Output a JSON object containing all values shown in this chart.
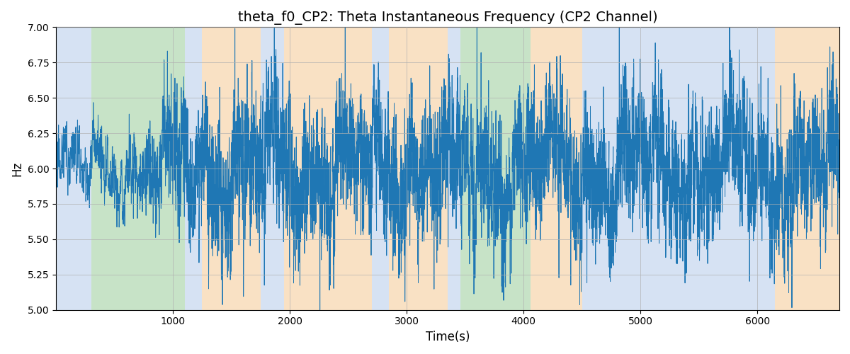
{
  "title": "theta_f0_CP2: Theta Instantaneous Frequency (CP2 Channel)",
  "xlabel": "Time(s)",
  "ylabel": "Hz",
  "xlim": [
    0,
    6700
  ],
  "ylim": [
    5.0,
    7.0
  ],
  "line_color": "#1f77b4",
  "line_width": 0.7,
  "background_color": "#ffffff",
  "grid_color": "#b0b0b0",
  "seed": 12345,
  "num_points": 6700,
  "mean_freq": 6.0,
  "colored_regions": [
    {
      "start": 0,
      "end": 300,
      "color": "#aec6e8",
      "alpha": 0.5
    },
    {
      "start": 300,
      "end": 1100,
      "color": "#90c990",
      "alpha": 0.5
    },
    {
      "start": 1100,
      "end": 1250,
      "color": "#aec6e8",
      "alpha": 0.5
    },
    {
      "start": 1250,
      "end": 1750,
      "color": "#f5c48a",
      "alpha": 0.5
    },
    {
      "start": 1750,
      "end": 1950,
      "color": "#aec6e8",
      "alpha": 0.5
    },
    {
      "start": 1950,
      "end": 2700,
      "color": "#f5c48a",
      "alpha": 0.5
    },
    {
      "start": 2700,
      "end": 2850,
      "color": "#aec6e8",
      "alpha": 0.5
    },
    {
      "start": 2850,
      "end": 3350,
      "color": "#f5c48a",
      "alpha": 0.5
    },
    {
      "start": 3350,
      "end": 3460,
      "color": "#aec6e8",
      "alpha": 0.5
    },
    {
      "start": 3460,
      "end": 4060,
      "color": "#90c990",
      "alpha": 0.5
    },
    {
      "start": 4060,
      "end": 4500,
      "color": "#f5c48a",
      "alpha": 0.5
    },
    {
      "start": 4500,
      "end": 6150,
      "color": "#aec6e8",
      "alpha": 0.5
    },
    {
      "start": 6150,
      "end": 6700,
      "color": "#f5c48a",
      "alpha": 0.5
    }
  ],
  "title_fontsize": 14,
  "label_fontsize": 12,
  "tick_fontsize": 10,
  "yticks": [
    5.0,
    5.25,
    5.5,
    5.75,
    6.0,
    6.25,
    6.5,
    6.75,
    7.0
  ],
  "xticks": [
    1000,
    2000,
    3000,
    4000,
    5000,
    6000
  ]
}
